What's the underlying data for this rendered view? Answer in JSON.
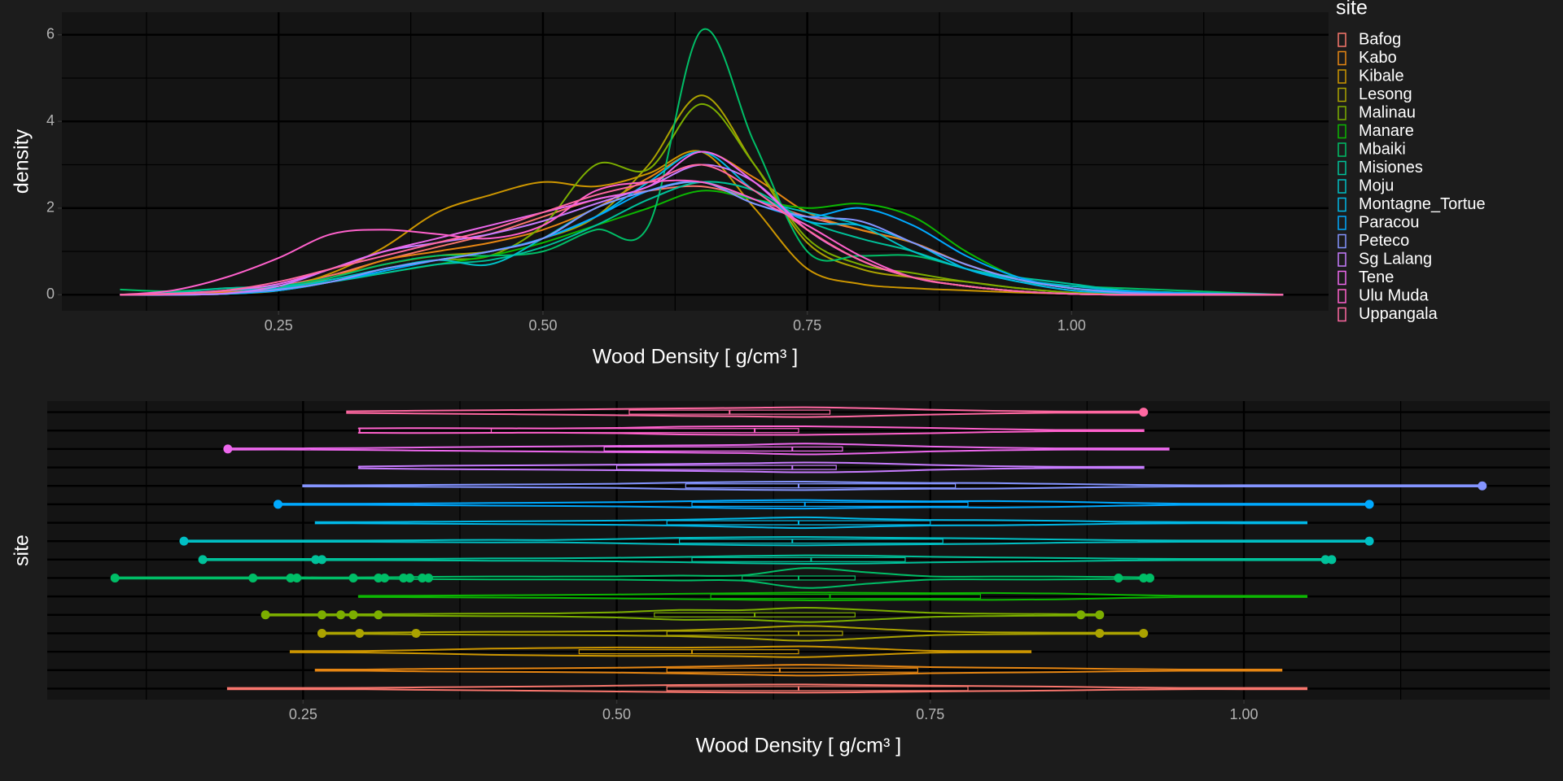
{
  "chart_data": [
    {
      "type": "density",
      "xlabel": "Wood Density [ g/cm³ ]",
      "ylabel": "density",
      "legend_title": "site",
      "legend": "right",
      "xlim": [
        0.045,
        1.243
      ],
      "ylim": [
        -0.37,
        6.52
      ],
      "xticks": [
        {
          "value": 0.25,
          "label": "0.25"
        },
        {
          "value": 0.5,
          "label": "0.50"
        },
        {
          "value": 0.75,
          "label": "0.75"
        },
        {
          "value": 1.0,
          "label": "1.00"
        }
      ],
      "xminor": [
        0.125,
        0.375,
        0.625,
        0.875,
        1.125
      ],
      "yticks": [
        0,
        2,
        4,
        6
      ],
      "yminor": [
        1,
        3,
        5
      ],
      "grid": true,
      "x": [
        0.1,
        0.15,
        0.2,
        0.25,
        0.3,
        0.35,
        0.4,
        0.45,
        0.5,
        0.55,
        0.6,
        0.65,
        0.7,
        0.75,
        0.8,
        0.85,
        0.9,
        0.95,
        1.0,
        1.05,
        1.1,
        1.15,
        1.2
      ],
      "series": [
        {
          "name": "Bafog",
          "color": "#F8766D",
          "values": [
            0,
            0.02,
            0.08,
            0.2,
            0.45,
            0.8,
            1.1,
            1.4,
            1.8,
            2.2,
            2.4,
            2.5,
            2.2,
            1.8,
            1.5,
            1.2,
            0.7,
            0.35,
            0.15,
            0.05,
            0.01,
            0,
            0
          ]
        },
        {
          "name": "Kabo",
          "color": "#E68613",
          "values": [
            0,
            0.02,
            0.05,
            0.15,
            0.4,
            0.8,
            1.0,
            1.2,
            1.5,
            2.0,
            2.7,
            3.3,
            2.7,
            1.9,
            1.5,
            1.2,
            0.7,
            0.35,
            0.15,
            0.05,
            0.01,
            0,
            0
          ]
        },
        {
          "name": "Kibale",
          "color": "#CD9600",
          "values": [
            0,
            0,
            0.03,
            0.15,
            0.5,
            1.1,
            1.9,
            2.3,
            2.6,
            2.5,
            2.8,
            3.3,
            2.0,
            0.6,
            0.25,
            0.15,
            0.1,
            0.05,
            0.02,
            0,
            0,
            0,
            0
          ]
        },
        {
          "name": "Lesong",
          "color": "#ABA300",
          "values": [
            0,
            0,
            0.02,
            0.1,
            0.4,
            0.7,
            0.9,
            1.0,
            1.3,
            1.8,
            3.0,
            4.6,
            3.0,
            1.2,
            0.6,
            0.4,
            0.3,
            0.15,
            0.05,
            0.01,
            0,
            0,
            0
          ]
        },
        {
          "name": "Malinau",
          "color": "#7CAE00",
          "values": [
            0,
            0,
            0.02,
            0.1,
            0.3,
            0.6,
            0.8,
            0.9,
            1.6,
            3.0,
            2.9,
            4.4,
            3.0,
            1.3,
            0.7,
            0.5,
            0.3,
            0.15,
            0.05,
            0.01,
            0,
            0,
            0
          ]
        },
        {
          "name": "Manare",
          "color": "#0CB702",
          "values": [
            0,
            0,
            0.02,
            0.1,
            0.3,
            0.5,
            0.7,
            0.9,
            1.2,
            1.6,
            2.0,
            2.4,
            2.2,
            2.0,
            2.1,
            1.8,
            1.0,
            0.4,
            0.15,
            0.05,
            0.01,
            0,
            0
          ]
        },
        {
          "name": "Mbaiki",
          "color": "#00BE67",
          "values": [
            0.12,
            0.08,
            0.15,
            0.2,
            0.4,
            0.7,
            0.9,
            0.9,
            1.0,
            1.5,
            1.6,
            6.1,
            3.5,
            1.0,
            0.9,
            0.9,
            0.6,
            0.3,
            0.2,
            0.15,
            0.1,
            0.05,
            0
          ]
        },
        {
          "name": "Misiones",
          "color": "#00C19A",
          "values": [
            0,
            0.05,
            0.15,
            0.2,
            0.3,
            0.5,
            0.7,
            0.8,
            1.1,
            1.6,
            2.2,
            2.6,
            2.4,
            1.7,
            1.3,
            1.0,
            0.6,
            0.4,
            0.25,
            0.1,
            0.05,
            0.02,
            0
          ]
        },
        {
          "name": "Moju",
          "color": "#00BFC4",
          "values": [
            0,
            0,
            0.1,
            0.15,
            0.35,
            0.6,
            0.8,
            0.7,
            1.3,
            2.0,
            2.4,
            2.6,
            2.2,
            1.9,
            1.6,
            1.0,
            0.6,
            0.35,
            0.2,
            0.1,
            0.05,
            0.02,
            0
          ]
        },
        {
          "name": "Montagne_Tortue",
          "color": "#00B8E7",
          "values": [
            0,
            0,
            0.02,
            0.1,
            0.3,
            0.6,
            0.8,
            1.0,
            1.3,
            1.8,
            2.6,
            3.3,
            2.4,
            1.7,
            1.6,
            1.2,
            0.6,
            0.3,
            0.1,
            0.04,
            0.01,
            0,
            0
          ]
        },
        {
          "name": "Paracou",
          "color": "#00A9FF",
          "values": [
            0,
            0,
            0.02,
            0.1,
            0.3,
            0.55,
            0.8,
            1.0,
            1.3,
            1.8,
            2.4,
            2.6,
            2.1,
            1.8,
            2.0,
            1.6,
            0.9,
            0.4,
            0.15,
            0.08,
            0.04,
            0.02,
            0
          ]
        },
        {
          "name": "Peteco",
          "color": "#8494FF",
          "values": [
            0,
            0,
            0.03,
            0.12,
            0.3,
            0.6,
            0.8,
            1.0,
            1.3,
            2.0,
            2.4,
            2.6,
            2.1,
            1.8,
            1.7,
            1.2,
            0.7,
            0.35,
            0.15,
            0.05,
            0.02,
            0.02,
            0
          ]
        },
        {
          "name": "Sg Lalang",
          "color": "#C77CFF",
          "values": [
            0,
            0,
            0.03,
            0.2,
            0.6,
            1.0,
            1.2,
            1.4,
            1.7,
            2.1,
            2.5,
            3.0,
            2.6,
            1.5,
            0.8,
            0.4,
            0.2,
            0.08,
            0.02,
            0,
            0,
            0,
            0
          ]
        },
        {
          "name": "Tene",
          "color": "#ED68ED",
          "values": [
            0,
            0.03,
            0.1,
            0.25,
            0.6,
            1.0,
            1.3,
            1.6,
            1.9,
            2.2,
            2.5,
            3.3,
            2.6,
            1.5,
            0.8,
            0.4,
            0.2,
            0.08,
            0.02,
            0,
            0,
            0,
            0
          ]
        },
        {
          "name": "Ulu Muda",
          "color": "#FF61CC",
          "values": [
            0,
            0.1,
            0.4,
            0.85,
            1.4,
            1.5,
            1.4,
            1.3,
            1.6,
            2.4,
            2.6,
            2.6,
            2.2,
            1.6,
            0.9,
            0.4,
            0.2,
            0.08,
            0.02,
            0,
            0,
            0,
            0
          ]
        },
        {
          "name": "Uppangala",
          "color": "#FF68A1",
          "values": [
            0,
            0.02,
            0.1,
            0.3,
            0.6,
            0.9,
            1.2,
            1.5,
            1.9,
            2.3,
            2.6,
            3.0,
            2.4,
            1.5,
            0.8,
            0.4,
            0.2,
            0.08,
            0.02,
            0,
            0,
            0,
            0
          ]
        }
      ]
    },
    {
      "type": "violin",
      "xlabel": "Wood Density [ g/cm³ ]",
      "ylabel": "site",
      "xlim": [
        0.046,
        1.244
      ],
      "ylim": [
        0.4,
        16.6
      ],
      "xticks": [
        {
          "value": 0.25,
          "label": "0.25"
        },
        {
          "value": 0.5,
          "label": "0.50"
        },
        {
          "value": 0.75,
          "label": "0.75"
        },
        {
          "value": 1.0,
          "label": "1.00"
        }
      ],
      "xminor": [
        0.125,
        0.375,
        0.625,
        0.875,
        1.125
      ],
      "grid": true,
      "boxes": [
        {
          "min": 0.19,
          "q1": 0.54,
          "median": 0.645,
          "q3": 0.78,
          "max": 1.05,
          "outliers": []
        },
        {
          "min": 0.26,
          "q1": 0.54,
          "median": 0.63,
          "q3": 0.74,
          "max": 1.03,
          "outliers": []
        },
        {
          "min": 0.24,
          "q1": 0.47,
          "median": 0.56,
          "q3": 0.645,
          "max": 0.83,
          "outliers": []
        },
        {
          "min": 0.265,
          "q1": 0.54,
          "median": 0.645,
          "q3": 0.68,
          "max": 0.92,
          "outliers": [
            0.265,
            0.295,
            0.34,
            0.885,
            0.92
          ]
        },
        {
          "min": 0.22,
          "q1": 0.53,
          "median": 0.61,
          "q3": 0.69,
          "max": 0.885,
          "outliers": [
            0.22,
            0.265,
            0.28,
            0.29,
            0.31,
            0.87,
            0.885
          ]
        },
        {
          "min": 0.295,
          "q1": 0.575,
          "median": 0.67,
          "q3": 0.79,
          "max": 1.05,
          "outliers": []
        },
        {
          "min": 0.1,
          "q1": 0.6,
          "median": 0.645,
          "q3": 0.69,
          "max": 0.925,
          "outliers": [
            0.1,
            0.21,
            0.24,
            0.245,
            0.29,
            0.31,
            0.315,
            0.33,
            0.335,
            0.345,
            0.35,
            0.9,
            0.92,
            0.925
          ]
        },
        {
          "min": 0.17,
          "q1": 0.56,
          "median": 0.655,
          "q3": 0.73,
          "max": 1.07,
          "outliers": [
            0.17,
            0.26,
            0.265,
            1.065,
            1.07
          ]
        },
        {
          "min": 0.155,
          "q1": 0.55,
          "median": 0.64,
          "q3": 0.76,
          "max": 1.1,
          "outliers": [
            0.155,
            1.1
          ]
        },
        {
          "min": 0.26,
          "q1": 0.54,
          "median": 0.645,
          "q3": 0.75,
          "max": 1.05,
          "outliers": []
        },
        {
          "min": 0.23,
          "q1": 0.56,
          "median": 0.65,
          "q3": 0.78,
          "max": 1.1,
          "outliers": [
            0.23,
            1.1
          ]
        },
        {
          "min": 0.25,
          "q1": 0.555,
          "median": 0.645,
          "q3": 0.77,
          "max": 1.19,
          "outliers": [
            1.19
          ]
        },
        {
          "min": 0.295,
          "q1": 0.5,
          "median": 0.64,
          "q3": 0.675,
          "max": 0.92,
          "outliers": []
        },
        {
          "min": 0.19,
          "q1": 0.49,
          "median": 0.64,
          "q3": 0.68,
          "max": 0.94,
          "outliers": [
            0.19
          ]
        },
        {
          "min": 0.295,
          "q1": 0.4,
          "median": 0.61,
          "q3": 0.645,
          "max": 0.92,
          "outliers": []
        },
        {
          "min": 0.285,
          "q1": 0.51,
          "median": 0.59,
          "q3": 0.67,
          "max": 0.92,
          "outliers": [
            0.92
          ]
        }
      ]
    }
  ]
}
